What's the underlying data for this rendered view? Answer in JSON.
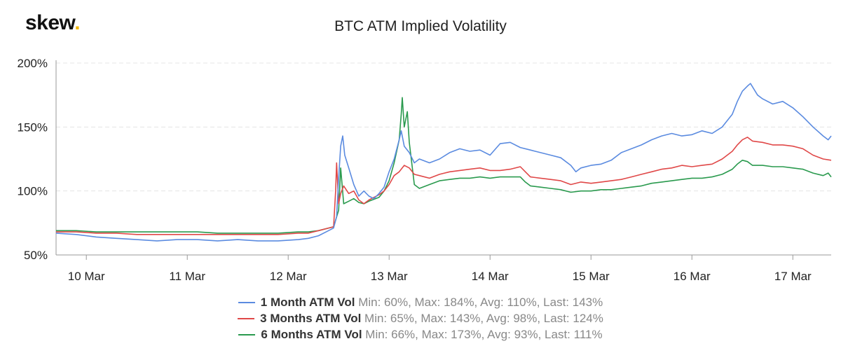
{
  "logo": {
    "text": "skew",
    "dot": "."
  },
  "chart_data": {
    "type": "line",
    "title": "BTC ATM Implied Volatility",
    "xlabel": "",
    "ylabel": "",
    "x_range": [
      9.7,
      17.38
    ],
    "ylim": [
      50,
      200
    ],
    "y_ticks": [
      {
        "value": 50,
        "label": "50%"
      },
      {
        "value": 100,
        "label": "100%"
      },
      {
        "value": 150,
        "label": "150%"
      },
      {
        "value": 200,
        "label": "200%"
      }
    ],
    "x_ticks": [
      {
        "value": 10,
        "label": "10 Mar"
      },
      {
        "value": 11,
        "label": "11 Mar"
      },
      {
        "value": 12,
        "label": "12 Mar"
      },
      {
        "value": 13,
        "label": "13 Mar"
      },
      {
        "value": 14,
        "label": "14 Mar"
      },
      {
        "value": 15,
        "label": "15 Mar"
      },
      {
        "value": 16,
        "label": "16 Mar"
      },
      {
        "value": 17,
        "label": "17 Mar"
      }
    ],
    "grid": "horizontal-dashed",
    "legend_position": "bottom",
    "series": [
      {
        "name": "1 Month ATM Vol",
        "stats": "Min: 60%, Max: 184%, Avg: 110%, Last: 143%",
        "color": "#5b8be0",
        "points": [
          [
            9.7,
            67
          ],
          [
            9.9,
            66
          ],
          [
            10.1,
            64
          ],
          [
            10.3,
            63
          ],
          [
            10.5,
            62
          ],
          [
            10.7,
            61
          ],
          [
            10.9,
            62
          ],
          [
            11.1,
            62
          ],
          [
            11.3,
            61
          ],
          [
            11.5,
            62
          ],
          [
            11.7,
            61
          ],
          [
            11.9,
            61
          ],
          [
            12.1,
            62
          ],
          [
            12.2,
            63
          ],
          [
            12.3,
            65
          ],
          [
            12.4,
            69
          ],
          [
            12.45,
            71
          ],
          [
            12.48,
            80
          ],
          [
            12.5,
            110
          ],
          [
            12.52,
            135
          ],
          [
            12.54,
            143
          ],
          [
            12.56,
            128
          ],
          [
            12.6,
            118
          ],
          [
            12.65,
            105
          ],
          [
            12.7,
            96
          ],
          [
            12.75,
            100
          ],
          [
            12.8,
            96
          ],
          [
            12.85,
            94
          ],
          [
            12.9,
            98
          ],
          [
            12.95,
            103
          ],
          [
            13.0,
            115
          ],
          [
            13.05,
            125
          ],
          [
            13.1,
            140
          ],
          [
            13.12,
            147
          ],
          [
            13.15,
            135
          ],
          [
            13.2,
            130
          ],
          [
            13.25,
            122
          ],
          [
            13.3,
            125
          ],
          [
            13.4,
            122
          ],
          [
            13.5,
            125
          ],
          [
            13.6,
            130
          ],
          [
            13.7,
            133
          ],
          [
            13.8,
            131
          ],
          [
            13.9,
            132
          ],
          [
            14.0,
            128
          ],
          [
            14.1,
            137
          ],
          [
            14.2,
            138
          ],
          [
            14.3,
            134
          ],
          [
            14.4,
            132
          ],
          [
            14.5,
            130
          ],
          [
            14.6,
            128
          ],
          [
            14.7,
            126
          ],
          [
            14.8,
            120
          ],
          [
            14.85,
            115
          ],
          [
            14.9,
            118
          ],
          [
            15.0,
            120
          ],
          [
            15.1,
            121
          ],
          [
            15.2,
            124
          ],
          [
            15.3,
            130
          ],
          [
            15.4,
            133
          ],
          [
            15.5,
            136
          ],
          [
            15.6,
            140
          ],
          [
            15.7,
            143
          ],
          [
            15.8,
            145
          ],
          [
            15.9,
            143
          ],
          [
            16.0,
            144
          ],
          [
            16.1,
            147
          ],
          [
            16.2,
            145
          ],
          [
            16.3,
            150
          ],
          [
            16.4,
            160
          ],
          [
            16.45,
            170
          ],
          [
            16.5,
            178
          ],
          [
            16.55,
            182
          ],
          [
            16.58,
            184
          ],
          [
            16.65,
            175
          ],
          [
            16.7,
            172
          ],
          [
            16.8,
            168
          ],
          [
            16.9,
            170
          ],
          [
            17.0,
            165
          ],
          [
            17.1,
            158
          ],
          [
            17.2,
            150
          ],
          [
            17.3,
            143
          ],
          [
            17.35,
            140
          ],
          [
            17.38,
            143
          ]
        ]
      },
      {
        "name": "3 Months ATM Vol",
        "stats": "Min: 65%, Max: 143%, Avg: 98%, Last: 124%",
        "color": "#e04848",
        "points": [
          [
            9.7,
            68
          ],
          [
            9.9,
            68
          ],
          [
            10.1,
            67
          ],
          [
            10.3,
            67
          ],
          [
            10.5,
            66
          ],
          [
            10.7,
            66
          ],
          [
            10.9,
            66
          ],
          [
            11.1,
            66
          ],
          [
            11.3,
            66
          ],
          [
            11.5,
            66
          ],
          [
            11.7,
            66
          ],
          [
            11.9,
            66
          ],
          [
            12.1,
            67
          ],
          [
            12.2,
            67
          ],
          [
            12.3,
            69
          ],
          [
            12.4,
            71
          ],
          [
            12.45,
            72
          ],
          [
            12.47,
            100
          ],
          [
            12.48,
            122
          ],
          [
            12.5,
            90
          ],
          [
            12.52,
            98
          ],
          [
            12.55,
            104
          ],
          [
            12.6,
            98
          ],
          [
            12.65,
            100
          ],
          [
            12.7,
            93
          ],
          [
            12.75,
            90
          ],
          [
            12.8,
            93
          ],
          [
            12.9,
            97
          ],
          [
            12.95,
            100
          ],
          [
            13.0,
            105
          ],
          [
            13.05,
            112
          ],
          [
            13.1,
            115
          ],
          [
            13.15,
            120
          ],
          [
            13.2,
            118
          ],
          [
            13.25,
            113
          ],
          [
            13.3,
            112
          ],
          [
            13.4,
            110
          ],
          [
            13.5,
            113
          ],
          [
            13.6,
            115
          ],
          [
            13.7,
            116
          ],
          [
            13.8,
            117
          ],
          [
            13.9,
            118
          ],
          [
            14.0,
            116
          ],
          [
            14.1,
            116
          ],
          [
            14.2,
            117
          ],
          [
            14.3,
            119
          ],
          [
            14.35,
            115
          ],
          [
            14.4,
            111
          ],
          [
            14.5,
            110
          ],
          [
            14.6,
            109
          ],
          [
            14.7,
            108
          ],
          [
            14.8,
            105
          ],
          [
            14.9,
            107
          ],
          [
            15.0,
            106
          ],
          [
            15.1,
            107
          ],
          [
            15.2,
            108
          ],
          [
            15.3,
            109
          ],
          [
            15.4,
            111
          ],
          [
            15.5,
            113
          ],
          [
            15.6,
            115
          ],
          [
            15.7,
            117
          ],
          [
            15.8,
            118
          ],
          [
            15.9,
            120
          ],
          [
            16.0,
            119
          ],
          [
            16.1,
            120
          ],
          [
            16.2,
            121
          ],
          [
            16.3,
            125
          ],
          [
            16.4,
            131
          ],
          [
            16.45,
            136
          ],
          [
            16.5,
            140
          ],
          [
            16.55,
            142
          ],
          [
            16.6,
            139
          ],
          [
            16.7,
            138
          ],
          [
            16.8,
            136
          ],
          [
            16.9,
            136
          ],
          [
            17.0,
            135
          ],
          [
            17.1,
            133
          ],
          [
            17.2,
            128
          ],
          [
            17.3,
            125
          ],
          [
            17.38,
            124
          ]
        ]
      },
      {
        "name": "6 Months ATM Vol",
        "stats": "Min: 66%, Max: 173%, Avg: 93%, Last: 111%",
        "color": "#2a9a4e",
        "points": [
          [
            9.7,
            69
          ],
          [
            9.9,
            69
          ],
          [
            10.1,
            68
          ],
          [
            10.3,
            68
          ],
          [
            10.5,
            68
          ],
          [
            10.7,
            68
          ],
          [
            10.9,
            68
          ],
          [
            11.1,
            68
          ],
          [
            11.3,
            67
          ],
          [
            11.5,
            67
          ],
          [
            11.7,
            67
          ],
          [
            11.9,
            67
          ],
          [
            12.1,
            68
          ],
          [
            12.2,
            68
          ],
          [
            12.3,
            69
          ],
          [
            12.4,
            71
          ],
          [
            12.45,
            72
          ],
          [
            12.5,
            85
          ],
          [
            12.52,
            118
          ],
          [
            12.55,
            90
          ],
          [
            12.6,
            92
          ],
          [
            12.65,
            94
          ],
          [
            12.7,
            91
          ],
          [
            12.75,
            90
          ],
          [
            12.8,
            92
          ],
          [
            12.9,
            95
          ],
          [
            12.95,
            100
          ],
          [
            13.0,
            108
          ],
          [
            13.05,
            122
          ],
          [
            13.1,
            140
          ],
          [
            13.12,
            160
          ],
          [
            13.13,
            173
          ],
          [
            13.15,
            150
          ],
          [
            13.18,
            162
          ],
          [
            13.2,
            138
          ],
          [
            13.25,
            105
          ],
          [
            13.3,
            102
          ],
          [
            13.4,
            105
          ],
          [
            13.5,
            108
          ],
          [
            13.6,
            109
          ],
          [
            13.7,
            110
          ],
          [
            13.8,
            110
          ],
          [
            13.9,
            111
          ],
          [
            14.0,
            110
          ],
          [
            14.1,
            111
          ],
          [
            14.2,
            111
          ],
          [
            14.3,
            111
          ],
          [
            14.35,
            107
          ],
          [
            14.4,
            104
          ],
          [
            14.5,
            103
          ],
          [
            14.6,
            102
          ],
          [
            14.7,
            101
          ],
          [
            14.8,
            99
          ],
          [
            14.9,
            100
          ],
          [
            15.0,
            100
          ],
          [
            15.1,
            101
          ],
          [
            15.2,
            101
          ],
          [
            15.3,
            102
          ],
          [
            15.4,
            103
          ],
          [
            15.5,
            104
          ],
          [
            15.6,
            106
          ],
          [
            15.7,
            107
          ],
          [
            15.8,
            108
          ],
          [
            15.9,
            109
          ],
          [
            16.0,
            110
          ],
          [
            16.1,
            110
          ],
          [
            16.2,
            111
          ],
          [
            16.3,
            113
          ],
          [
            16.4,
            117
          ],
          [
            16.45,
            121
          ],
          [
            16.5,
            124
          ],
          [
            16.55,
            123
          ],
          [
            16.6,
            120
          ],
          [
            16.7,
            120
          ],
          [
            16.8,
            119
          ],
          [
            16.9,
            119
          ],
          [
            17.0,
            118
          ],
          [
            17.1,
            117
          ],
          [
            17.2,
            114
          ],
          [
            17.3,
            112
          ],
          [
            17.35,
            114
          ],
          [
            17.38,
            111
          ]
        ]
      }
    ]
  }
}
